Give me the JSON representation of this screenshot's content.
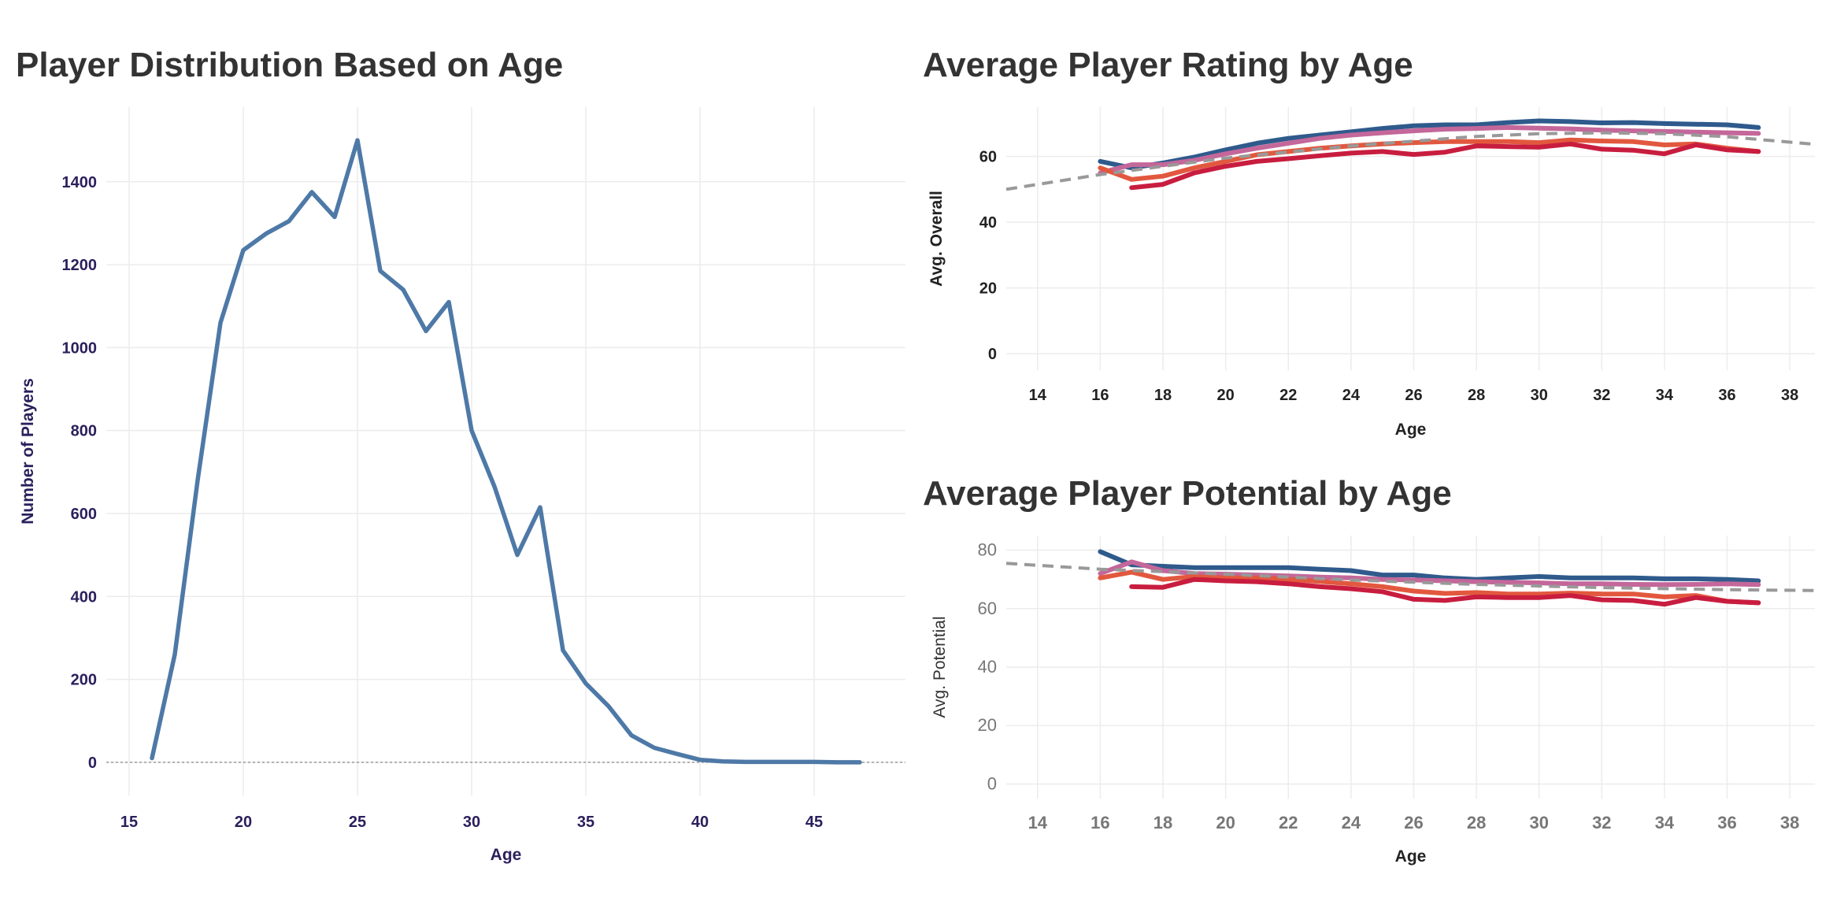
{
  "chart_data": [
    {
      "type": "line",
      "title": "Player Distribution Based on Age",
      "xlabel": "Age",
      "ylabel": "Number of Players",
      "xlim": [
        14,
        49
      ],
      "ylim": [
        -80,
        1580
      ],
      "xticks": [
        15,
        20,
        25,
        30,
        35,
        40,
        45
      ],
      "yticks": [
        0,
        200,
        400,
        600,
        800,
        1000,
        1200,
        1400
      ],
      "grid": true,
      "reference_line": {
        "y": 0,
        "style": "dotted"
      },
      "series": [
        {
          "color": "#4e79a7",
          "x": [
            16,
            17,
            18,
            19,
            20,
            21,
            22,
            23,
            24,
            25,
            26,
            27,
            28,
            29,
            30,
            31,
            32,
            33,
            34,
            35,
            36,
            37,
            38,
            39,
            40,
            41,
            42,
            43,
            44,
            45,
            46,
            47
          ],
          "y": [
            10,
            260,
            680,
            1060,
            1235,
            1275,
            1305,
            1375,
            1315,
            1500,
            1185,
            1140,
            1040,
            1110,
            800,
            665,
            500,
            615,
            270,
            190,
            135,
            65,
            35,
            20,
            6,
            2,
            1,
            1,
            1,
            1,
            0,
            0
          ]
        }
      ]
    },
    {
      "type": "line",
      "title": "Average Player Rating by Age",
      "xlabel": "Age",
      "ylabel": "Avg. Overall",
      "xlim": [
        13,
        38.8
      ],
      "ylim": [
        -5,
        75
      ],
      "xticks": [
        14,
        16,
        18,
        20,
        22,
        24,
        26,
        28,
        30,
        32,
        34,
        36,
        38
      ],
      "yticks": [
        0,
        20,
        40,
        60
      ],
      "grid": true,
      "trend": {
        "style": "dashed",
        "color": "#999999",
        "x": [
          13,
          16,
          20,
          24,
          28,
          30,
          32,
          34,
          36,
          38.8
        ],
        "y": [
          50,
          54.5,
          59.5,
          63.2,
          66.1,
          66.9,
          67.2,
          66.9,
          66.0,
          63.7
        ]
      },
      "series": [
        {
          "color": "#2f5a8c",
          "x": [
            16,
            17,
            18,
            19,
            20,
            21,
            22,
            23,
            24,
            25,
            26,
            27,
            28,
            29,
            30,
            31,
            32,
            33,
            34,
            35,
            36,
            37
          ],
          "y": [
            58.5,
            56.5,
            58,
            59.8,
            62,
            64,
            65.5,
            66.5,
            67.5,
            68.5,
            69.3,
            69.6,
            69.6,
            70.3,
            70.8,
            70.6,
            70.2,
            70.3,
            70,
            69.8,
            69.6,
            68.8
          ]
        },
        {
          "color": "#c4679a",
          "x": [
            16,
            17,
            18,
            19,
            20,
            21,
            22,
            23,
            24,
            25,
            26,
            27,
            28,
            29,
            30,
            31,
            32,
            33,
            34,
            35,
            36,
            37
          ],
          "y": [
            55,
            57.5,
            57.5,
            58.8,
            60.8,
            62.5,
            64,
            65.5,
            66.5,
            67.2,
            67.8,
            68.3,
            68.5,
            68.8,
            68.6,
            68.4,
            68,
            67.8,
            67.6,
            67.4,
            67.2,
            67
          ]
        },
        {
          "color": "#e2583e",
          "x": [
            16,
            17,
            18,
            19,
            20,
            21,
            22,
            23,
            24,
            25,
            26,
            27,
            28,
            29,
            30,
            31,
            32,
            33,
            34,
            35,
            36,
            37
          ],
          "y": [
            56.5,
            53,
            54,
            56.5,
            58.5,
            60.5,
            61.5,
            62.5,
            63.2,
            63.8,
            64.2,
            64.5,
            64.5,
            64.5,
            64.2,
            65,
            64.7,
            64.5,
            63.5,
            63.8,
            62.5,
            61.5
          ]
        },
        {
          "color": "#c81d3f",
          "x": [
            17,
            18,
            19,
            20,
            21,
            22,
            23,
            24,
            25,
            26,
            27,
            28,
            29,
            30,
            31,
            32,
            33,
            34,
            35,
            36,
            37
          ],
          "y": [
            50.5,
            51.5,
            55,
            57,
            58.5,
            59.3,
            60.2,
            61,
            61.5,
            60.6,
            61.3,
            63.2,
            63,
            62.8,
            63.8,
            62.2,
            61.9,
            60.8,
            63.5,
            62,
            61.5
          ]
        }
      ]
    },
    {
      "type": "line",
      "title": "Average Player Potential by Age",
      "xlabel": "Age",
      "ylabel": "Avg. Potential",
      "xlim": [
        13,
        38.8
      ],
      "ylim": [
        -5,
        85
      ],
      "xticks": [
        14,
        16,
        18,
        20,
        22,
        24,
        26,
        28,
        30,
        32,
        34,
        36,
        38
      ],
      "yticks": [
        0,
        20,
        40,
        60,
        80
      ],
      "grid": true,
      "trend": {
        "style": "dashed",
        "color": "#999999",
        "x": [
          13,
          16,
          20,
          24,
          28,
          32,
          36,
          38.8
        ],
        "y": [
          75.5,
          73.5,
          71.8,
          69.8,
          68.3,
          67.2,
          66.5,
          66.2
        ]
      },
      "series": [
        {
          "color": "#2f5a8c",
          "x": [
            16,
            17,
            18,
            19,
            20,
            21,
            22,
            23,
            24,
            25,
            26,
            27,
            28,
            29,
            30,
            31,
            32,
            33,
            34,
            35,
            36,
            37
          ],
          "y": [
            79.5,
            75,
            74.5,
            74,
            74,
            74,
            74,
            73.5,
            73,
            71.5,
            71.5,
            70.5,
            70,
            70.5,
            71,
            70.5,
            70.5,
            70.5,
            70.2,
            70.2,
            70,
            69.5
          ]
        },
        {
          "color": "#c4679a",
          "x": [
            16,
            17,
            18,
            19,
            20,
            21,
            22,
            23,
            24,
            25,
            26,
            27,
            28,
            29,
            30,
            31,
            32,
            33,
            34,
            35,
            36,
            37
          ],
          "y": [
            72,
            76,
            73,
            72,
            71.8,
            71.5,
            71.2,
            70.8,
            70.5,
            70,
            69.8,
            69.5,
            69.2,
            69,
            68.8,
            68.5,
            68.5,
            68.3,
            68.2,
            68.3,
            68.5,
            68.2
          ]
        },
        {
          "color": "#e2583e",
          "x": [
            16,
            17,
            18,
            19,
            20,
            21,
            22,
            23,
            24,
            25,
            26,
            27,
            28,
            29,
            30,
            31,
            32,
            33,
            34,
            35,
            36,
            37
          ],
          "y": [
            70.5,
            72.5,
            70,
            71,
            70.5,
            70.5,
            70,
            69.3,
            68.5,
            67.5,
            66,
            65.2,
            65.5,
            65,
            65,
            65.3,
            65,
            65,
            64,
            64.5,
            62.5,
            62
          ]
        },
        {
          "color": "#c81d3f",
          "x": [
            17,
            18,
            19,
            20,
            21,
            22,
            23,
            24,
            25,
            26,
            27,
            28,
            29,
            30,
            31,
            32,
            33,
            34,
            35,
            36,
            37
          ],
          "y": [
            67.5,
            67.3,
            70,
            69.5,
            69.2,
            68.5,
            67.5,
            66.8,
            65.8,
            63.2,
            62.8,
            64,
            63.8,
            63.8,
            64.5,
            63,
            62.8,
            61.5,
            63.8,
            62.5,
            62
          ]
        }
      ]
    }
  ]
}
